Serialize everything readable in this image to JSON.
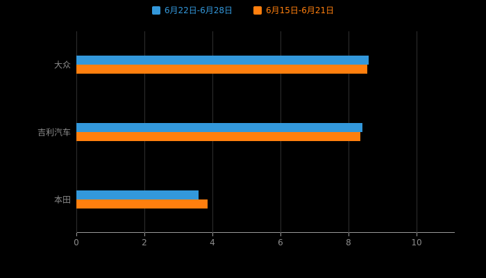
{
  "page": {
    "background_color": "#000000",
    "text_color": "#8c8c8c",
    "grid_color": "#2f2f2f",
    "axis_color": "#9a9a9a"
  },
  "legend": {
    "items": [
      {
        "label": "6月22日-6月28日",
        "color": "#3398DB"
      },
      {
        "label": "6月15日-6月21日",
        "color": "#FF7F0E"
      }
    ]
  },
  "chart_data": {
    "type": "bar",
    "orientation": "horizontal",
    "title": "",
    "xlabel": "",
    "ylabel": "",
    "categories": [
      "大众",
      "吉利汽车",
      "本田"
    ],
    "series": [
      {
        "name": "6月22日-6月28日",
        "color": "#3398DB",
        "values": [
          8.6,
          8.4,
          3.6
        ]
      },
      {
        "name": "6月15日-6月21日",
        "color": "#FF7F0E",
        "values": [
          8.55,
          8.35,
          3.85
        ]
      }
    ],
    "xlim": [
      0,
      10
    ],
    "x_ticks": [
      0,
      2,
      4,
      6,
      8,
      10
    ],
    "grid": true,
    "legend_position": "top"
  }
}
